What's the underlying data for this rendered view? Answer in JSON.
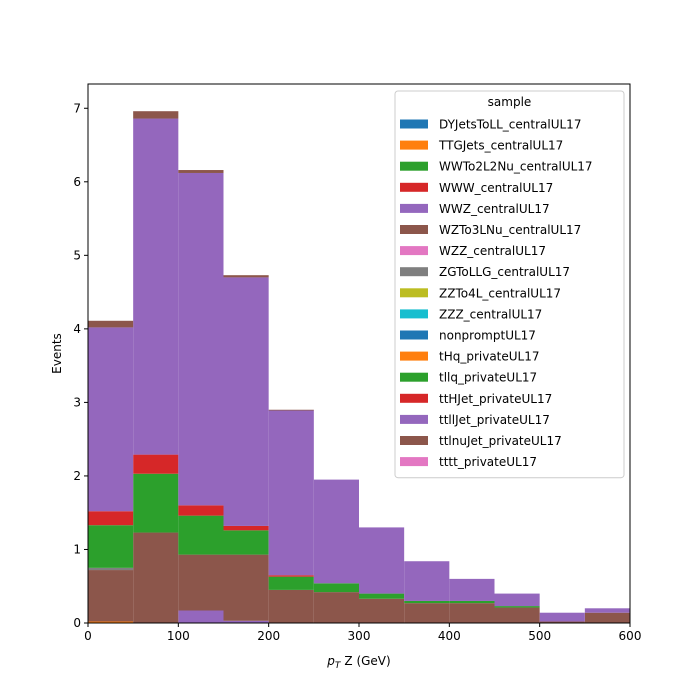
{
  "chart_data": {
    "type": "bar",
    "stacked": true,
    "xlabel": "Z (GeV)",
    "xlabel_prefix": "p",
    "xlabel_sub": "T",
    "ylabel": "Events",
    "xlim": [
      0,
      600
    ],
    "ylim": [
      0,
      7.33
    ],
    "x_edges": [
      0,
      50,
      100,
      150,
      200,
      250,
      300,
      350,
      400,
      450,
      500,
      550,
      600
    ],
    "xticks": [
      0,
      100,
      200,
      300,
      400,
      500,
      600
    ],
    "yticks": [
      0,
      1,
      2,
      3,
      4,
      5,
      6,
      7
    ],
    "legend": {
      "title": "sample",
      "placement": "top-right"
    },
    "series": [
      {
        "name": "DYJetsToLL_centralUL17",
        "color": "#1f77b4",
        "values": [
          0,
          0,
          0,
          0,
          0,
          0,
          0,
          0,
          0,
          0,
          0,
          0
        ]
      },
      {
        "name": "TTGJets_centralUL17",
        "color": "#ff7f0e",
        "values": [
          0.02,
          0,
          0,
          0,
          0,
          0,
          0,
          0,
          0,
          0,
          0,
          0
        ]
      },
      {
        "name": "WWTo2L2Nu_centralUL17",
        "color": "#2ca02c",
        "values": [
          0,
          0,
          0,
          0,
          0,
          0,
          0,
          0,
          0,
          0,
          0,
          0
        ]
      },
      {
        "name": "WWW_centralUL17",
        "color": "#d62728",
        "values": [
          0,
          0,
          0,
          0,
          0,
          0,
          0,
          0,
          0,
          0,
          0,
          0
        ]
      },
      {
        "name": "WWZ_centralUL17",
        "color": "#9467bd",
        "values": [
          0,
          0,
          0.17,
          0.03,
          0,
          0,
          0,
          0,
          0,
          0,
          0,
          0
        ]
      },
      {
        "name": "WZTo3LNu_centralUL17",
        "color": "#8c564b",
        "values": [
          0.7,
          1.23,
          0.76,
          0.9,
          0.45,
          0.42,
          0.33,
          0.27,
          0.27,
          0.21,
          0.02,
          0.14
        ]
      },
      {
        "name": "WZZ_centralUL17",
        "color": "#e377c2",
        "values": [
          0,
          0,
          0,
          0,
          0,
          0,
          0,
          0,
          0,
          0,
          0,
          0
        ]
      },
      {
        "name": "ZGToLLG_centralUL17",
        "color": "#7f7f7f",
        "values": [
          0.03,
          0,
          0,
          0,
          0,
          0,
          0,
          0,
          0,
          0,
          0,
          0
        ]
      },
      {
        "name": "ZZTo4L_centralUL17",
        "color": "#bcbd22",
        "values": [
          0,
          0,
          0,
          0,
          0,
          0,
          0,
          0,
          0,
          0,
          0,
          0
        ]
      },
      {
        "name": "ZZZ_centralUL17",
        "color": "#17becf",
        "values": [
          0,
          0,
          0,
          0,
          0,
          0,
          0,
          0,
          0,
          0,
          0,
          0
        ]
      },
      {
        "name": "nonpromptUL17",
        "color": "#1f77b4",
        "values": [
          0,
          0,
          0,
          0,
          0,
          0,
          0,
          0,
          0,
          0,
          0,
          0
        ]
      },
      {
        "name": "tHq_privateUL17",
        "color": "#ff7f0e",
        "values": [
          0,
          0,
          0,
          0,
          0,
          0,
          0,
          0,
          0,
          0,
          0,
          0
        ]
      },
      {
        "name": "tllq_privateUL17",
        "color": "#2ca02c",
        "values": [
          0.58,
          0.8,
          0.53,
          0.33,
          0.18,
          0.12,
          0.07,
          0.03,
          0.03,
          0.02,
          0,
          0
        ]
      },
      {
        "name": "ttHJet_privateUL17",
        "color": "#d62728",
        "values": [
          0.19,
          0.26,
          0.14,
          0.06,
          0.02,
          0,
          0,
          0,
          0,
          0,
          0,
          0
        ]
      },
      {
        "name": "ttllJet_privateUL17",
        "color": "#9467bd",
        "values": [
          2.5,
          4.57,
          4.52,
          3.38,
          2.24,
          1.41,
          0.9,
          0.54,
          0.3,
          0.17,
          0.12,
          0.06
        ]
      },
      {
        "name": "ttlnuJet_privateUL17",
        "color": "#8c564b",
        "values": [
          0.09,
          0.1,
          0.04,
          0.03,
          0.01,
          0,
          0,
          0,
          0,
          0,
          0,
          0
        ]
      },
      {
        "name": "tttt_privateUL17",
        "color": "#e377c2",
        "values": [
          0,
          0,
          0,
          0,
          0,
          0,
          0,
          0,
          0,
          0,
          0,
          0
        ]
      }
    ]
  }
}
